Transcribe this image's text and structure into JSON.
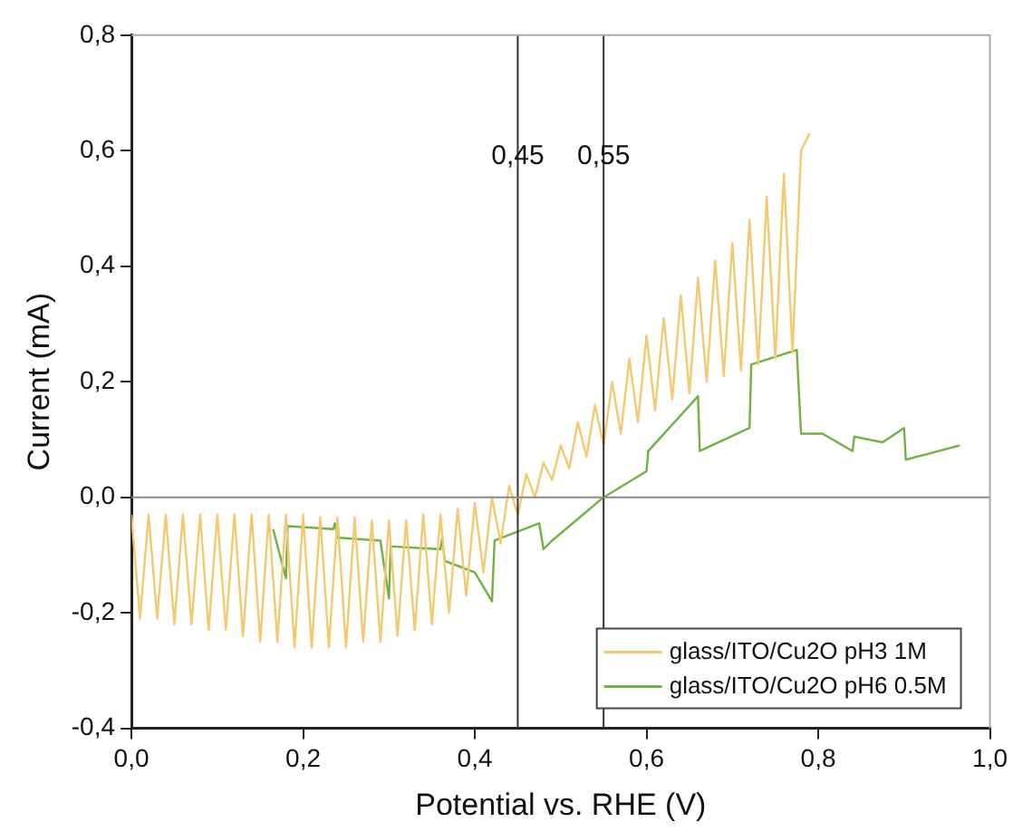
{
  "chart_data": {
    "type": "line",
    "xlabel": "Potential vs. RHE (V)",
    "ylabel": "Current (mA)",
    "xlim": [
      0,
      1
    ],
    "ylim": [
      -0.4,
      0.8
    ],
    "xticks": [
      {
        "value": 0,
        "label": "0,0"
      },
      {
        "value": 0.2,
        "label": "0,2"
      },
      {
        "value": 0.4,
        "label": "0,4"
      },
      {
        "value": 0.6,
        "label": "0,6"
      },
      {
        "value": 0.8,
        "label": "0,8"
      },
      {
        "value": 1,
        "label": "1,0"
      }
    ],
    "yticks": [
      {
        "value": -0.4,
        "label": "-0,4"
      },
      {
        "value": -0.2,
        "label": "-0,2"
      },
      {
        "value": 0,
        "label": "0,0"
      },
      {
        "value": 0.2,
        "label": "0,2"
      },
      {
        "value": 0.4,
        "label": "0,4"
      },
      {
        "value": 0.6,
        "label": "0,6"
      },
      {
        "value": 0.8,
        "label": "0,8"
      }
    ],
    "grid": false,
    "legend": "bottom right",
    "marker": "none",
    "line_style": "solid",
    "ref_lines": [
      {
        "axis": "x",
        "value": 0.45,
        "label": "0,45",
        "color": "#333333"
      },
      {
        "axis": "x",
        "value": 0.55,
        "label": "0,55",
        "color": "#333333"
      },
      {
        "axis": "y",
        "value": 0,
        "color": "#888888"
      }
    ],
    "series": [
      {
        "name": "glass/ITO/Cu2O pH3 1M",
        "color": "#f5c870",
        "x": [
          0,
          0.01,
          0.02,
          0.03,
          0.04,
          0.05,
          0.06,
          0.07,
          0.08,
          0.09,
          0.1,
          0.11,
          0.12,
          0.13,
          0.14,
          0.15,
          0.16,
          0.17,
          0.18,
          0.19,
          0.2,
          0.21,
          0.22,
          0.23,
          0.24,
          0.25,
          0.26,
          0.27,
          0.28,
          0.29,
          0.3,
          0.31,
          0.32,
          0.33,
          0.34,
          0.35,
          0.36,
          0.37,
          0.38,
          0.39,
          0.4,
          0.41,
          0.42,
          0.43,
          0.44,
          0.45,
          0.46,
          0.47,
          0.48,
          0.49,
          0.5,
          0.51,
          0.52,
          0.53,
          0.54,
          0.55,
          0.56,
          0.57,
          0.58,
          0.59,
          0.6,
          0.61,
          0.62,
          0.63,
          0.64,
          0.65,
          0.66,
          0.67,
          0.68,
          0.69,
          0.7,
          0.71,
          0.72,
          0.73,
          0.74,
          0.75,
          0.76,
          0.77,
          0.78,
          0.79
        ],
        "values": [
          -0.03,
          -0.21,
          -0.03,
          -0.21,
          -0.03,
          -0.22,
          -0.03,
          -0.22,
          -0.03,
          -0.23,
          -0.03,
          -0.23,
          -0.03,
          -0.24,
          -0.03,
          -0.25,
          -0.03,
          -0.25,
          -0.03,
          -0.26,
          -0.03,
          -0.26,
          -0.035,
          -0.26,
          -0.035,
          -0.26,
          -0.035,
          -0.25,
          -0.04,
          -0.25,
          -0.04,
          -0.24,
          -0.04,
          -0.23,
          -0.03,
          -0.22,
          -0.03,
          -0.2,
          -0.02,
          -0.17,
          -0.01,
          -0.13,
          0,
          -0.08,
          0.02,
          -0.03,
          0.04,
          0,
          0.06,
          0.03,
          0.09,
          0.05,
          0.13,
          0.07,
          0.16,
          0.09,
          0.2,
          0.11,
          0.24,
          0.13,
          0.28,
          0.15,
          0.31,
          0.17,
          0.35,
          0.18,
          0.38,
          0.2,
          0.41,
          0.21,
          0.44,
          0.22,
          0.48,
          0.23,
          0.52,
          0.24,
          0.56,
          0.25,
          0.6,
          0.63
        ]
      },
      {
        "name": "glass/ITO/Cu2O pH6 0.5M",
        "color": "#6db33f",
        "x": [
          0.165,
          0.18,
          0.182,
          0.235,
          0.237,
          0.24,
          0.29,
          0.3,
          0.302,
          0.36,
          0.362,
          0.365,
          0.4,
          0.42,
          0.423,
          0.475,
          0.48,
          0.49,
          0.55,
          0.6,
          0.602,
          0.66,
          0.662,
          0.72,
          0.722,
          0.775,
          0.78,
          0.805,
          0.84,
          0.842,
          0.875,
          0.9,
          0.902,
          0.965
        ],
        "values": [
          -0.055,
          -0.14,
          -0.05,
          -0.055,
          -0.045,
          -0.07,
          -0.075,
          -0.175,
          -0.085,
          -0.09,
          -0.07,
          -0.11,
          -0.13,
          -0.18,
          -0.075,
          -0.045,
          -0.09,
          -0.075,
          0,
          0.045,
          0.08,
          0.175,
          0.08,
          0.12,
          0.23,
          0.255,
          0.11,
          0.11,
          0.08,
          0.105,
          0.095,
          0.12,
          0.065,
          0.09
        ]
      }
    ]
  }
}
